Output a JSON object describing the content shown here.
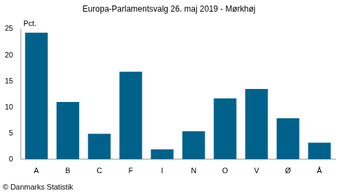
{
  "chart_data": {
    "type": "bar",
    "title": "Europa-Parlamentsvalg 26. maj 2019 - Mørkhøj",
    "ylabel": "Pct.",
    "source": "© Danmarks Statistik",
    "categories": [
      "A",
      "B",
      "C",
      "F",
      "I",
      "N",
      "O",
      "V",
      "Ø",
      "Å"
    ],
    "values": [
      24.3,
      11.0,
      4.9,
      16.8,
      1.9,
      5.4,
      11.7,
      13.5,
      7.9,
      3.2
    ],
    "color": "#00628b",
    "ylim": [
      0,
      25
    ],
    "yticks": [
      0,
      5,
      10,
      15,
      20,
      25
    ],
    "grid": false
  }
}
